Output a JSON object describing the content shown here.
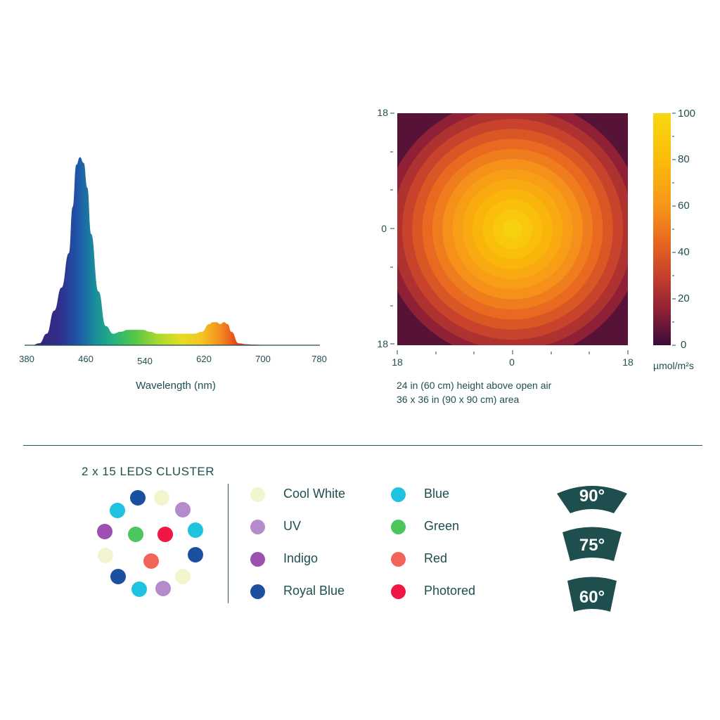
{
  "spectrum": {
    "xlabel": "Wavelength (nm)",
    "ticks": [
      "380",
      "460",
      "540",
      "620",
      "700",
      "780"
    ]
  },
  "heatmap": {
    "y_ticks": [
      "18",
      "0",
      "18"
    ],
    "x_ticks": [
      "18",
      "0",
      "18"
    ],
    "colorbar_ticks": [
      "100",
      "80",
      "60",
      "40",
      "20",
      "0"
    ],
    "unit": "µmol/m²s",
    "caption_line1": "24 in (60 cm) height above open air",
    "caption_line2": "36 x 36 in (90 x 90 cm) area"
  },
  "cluster": {
    "title": "2 x 15 LEDS CLUSTER",
    "dots": [
      {
        "type": "Royal Blue",
        "color": "#1b4fa0"
      },
      {
        "type": "Cool White",
        "color": "#f3f5cf"
      },
      {
        "type": "UV",
        "color": "#b58ccb"
      },
      {
        "type": "Blue",
        "color": "#1fc3df"
      },
      {
        "type": "Indigo",
        "color": "#9c50b0"
      },
      {
        "type": "Green",
        "color": "#4cc65c"
      },
      {
        "type": "Photored",
        "color": "#f01645"
      },
      {
        "type": "Blue",
        "color": "#1fc3df"
      },
      {
        "type": "Cool White",
        "color": "#f3f5cf"
      },
      {
        "type": "Red",
        "color": "#f1645a"
      },
      {
        "type": "Royal Blue",
        "color": "#1b4fa0"
      },
      {
        "type": "Royal Blue",
        "color": "#1b4fa0"
      },
      {
        "type": "Cool White",
        "color": "#f3f5cf"
      },
      {
        "type": "Blue",
        "color": "#1fc3df"
      },
      {
        "type": "UV",
        "color": "#b58ccb"
      }
    ]
  },
  "legend": [
    {
      "label": "Cool White",
      "color": "#f3f5cf"
    },
    {
      "label": "UV",
      "color": "#b58ccb"
    },
    {
      "label": "Indigo",
      "color": "#9c50b0"
    },
    {
      "label": "Royal Blue",
      "color": "#1b4fa0"
    },
    {
      "label": "Blue",
      "color": "#1fc3df"
    },
    {
      "label": "Green",
      "color": "#4cc65c"
    },
    {
      "label": "Red",
      "color": "#f1645a"
    },
    {
      "label": "Photored",
      "color": "#f01645"
    }
  ],
  "beam_angles": [
    "90°",
    "75°",
    "60°"
  ],
  "colors": {
    "text": "#1f4e4f",
    "badge": "#1f4e4f"
  },
  "chart_data": [
    {
      "type": "area",
      "xlabel": "Wavelength (nm)",
      "xlim": [
        380,
        780
      ],
      "x": [
        380,
        390,
        400,
        410,
        420,
        430,
        440,
        445,
        450,
        455,
        460,
        465,
        470,
        480,
        490,
        500,
        510,
        520,
        530,
        540,
        550,
        560,
        570,
        580,
        590,
        600,
        610,
        620,
        630,
        635,
        640,
        645,
        650,
        655,
        660,
        670,
        680,
        690,
        700,
        720,
        740,
        760,
        780
      ],
      "y": [
        0,
        0,
        1,
        6,
        18,
        30,
        48,
        72,
        94,
        98,
        95,
        82,
        58,
        28,
        10,
        6,
        7,
        8,
        8,
        8,
        7,
        6,
        6,
        6,
        6,
        6,
        6,
        7,
        11,
        12,
        12,
        11,
        12,
        11,
        7,
        1,
        0.5,
        0.3,
        0.2,
        0.1,
        0.1,
        0,
        0
      ]
    },
    {
      "type": "heatmap",
      "x_ticks": [
        "18",
        "0",
        "18"
      ],
      "y_ticks": [
        "18",
        "0",
        "18"
      ],
      "colorbar": {
        "min": 0,
        "max": 100,
        "ticks": [
          0,
          20,
          40,
          60,
          80,
          100
        ],
        "label": "µmol/m²s"
      },
      "peak": 95,
      "corner": 5
    }
  ]
}
